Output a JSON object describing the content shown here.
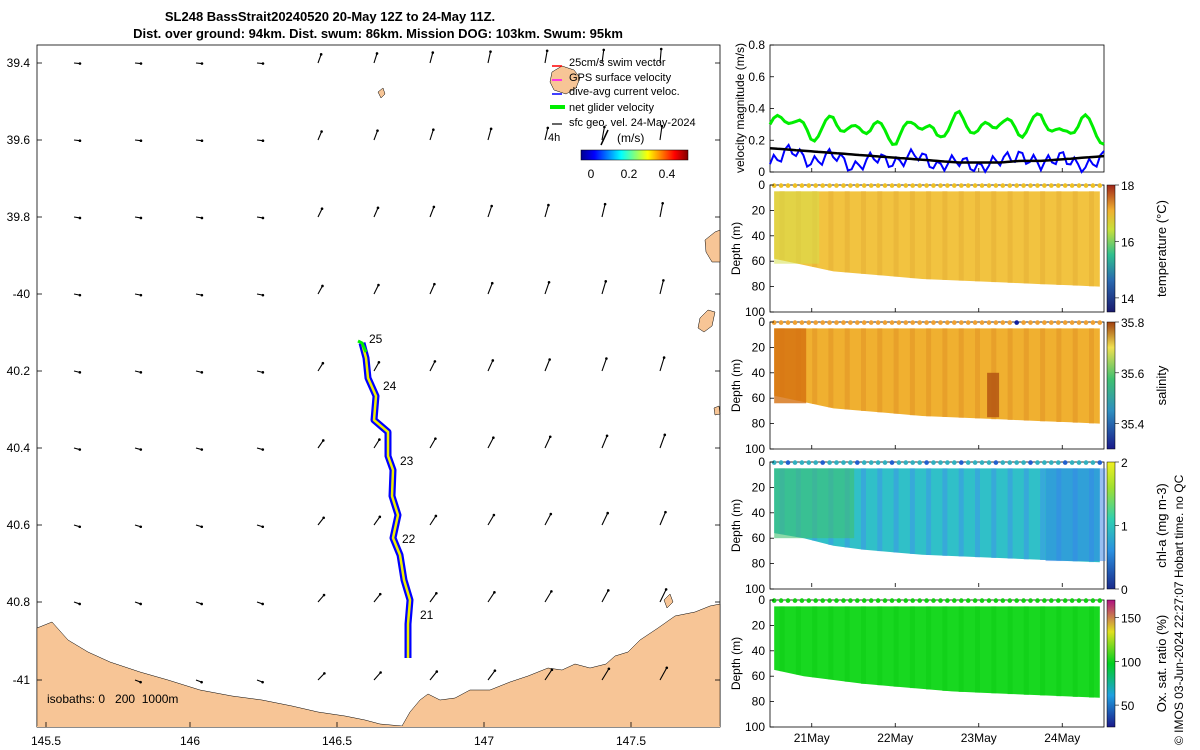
{
  "title": {
    "line1": "SL248 BassStrait20240520 20-May 12Z to 24-May 11Z.",
    "line2": "Dist. over ground: 94km. Dist. swum: 86km. Mission DOG: 103km. Swum: 95km"
  },
  "credit": "© IMOS 03-Jun-2024 22:27:07 Hobart time. no QC",
  "map": {
    "lon_ticks": [
      "145.5",
      "146",
      "146.5",
      "147",
      "147.5"
    ],
    "lon_values": [
      145.5,
      146.0,
      146.5,
      147.0,
      147.5
    ],
    "lat_ticks": [
      "39.4",
      "39.6",
      "39.8",
      "-40",
      "40.2",
      "40.4",
      "40.6",
      "40.8",
      "-41"
    ],
    "lat_values": [
      -39.4,
      -39.6,
      -39.8,
      -40.0,
      -40.2,
      -40.4,
      -40.6,
      -40.8,
      -41.0
    ],
    "legend": {
      "items": [
        {
          "label": "25cm/s swim vector",
          "color": "#ff0000"
        },
        {
          "label": "GPS surface velocity",
          "color": "#ff00ff"
        },
        {
          "label": "dive-avg current veloc.",
          "color": "#0000ff"
        },
        {
          "label": "net glider velocity",
          "color": "#00ee00"
        },
        {
          "label": "sfc geo. vel. 24-May-2024",
          "color": "#000000"
        }
      ],
      "cbar_unit": "(m/s)",
      "cbar_ticks": [
        "0",
        "0.2",
        "0.4"
      ],
      "arrow_label": "4h"
    },
    "day_labels": [
      "25",
      "24",
      "23",
      "22",
      "21"
    ],
    "isobaths_label": "isobaths: 0   200  1000m",
    "land_color": "#f7c596"
  },
  "panels": {
    "velocity": {
      "ylabel": "velocity magnitude (m/s)",
      "yticks": [
        "0",
        "0.2",
        "0.4",
        "0.6",
        "0.8"
      ],
      "ylim": [
        0,
        0.8
      ]
    },
    "temperature": {
      "ylabel": "temperature (°C)",
      "cbar_ticks": [
        "14",
        "16",
        "18"
      ],
      "depth_label": "Depth (m)",
      "depth_ticks": [
        "0",
        "20",
        "40",
        "60",
        "80",
        "100"
      ]
    },
    "salinity": {
      "ylabel": "salinity",
      "cbar_ticks": [
        "35.4",
        "35.6",
        "35.8"
      ],
      "depth_label": "Depth (m)",
      "depth_ticks": [
        "0",
        "20",
        "40",
        "60",
        "80",
        "100"
      ]
    },
    "chla": {
      "ylabel": "chl-a (mg m-3)",
      "cbar_ticks": [
        "0",
        "1",
        "2"
      ],
      "depth_label": "Depth (m)",
      "depth_ticks": [
        "0",
        "20",
        "40",
        "60",
        "80",
        "100"
      ]
    },
    "oxygen": {
      "ylabel": "Ox. sat. ratio (%)",
      "cbar_ticks": [
        "50",
        "100",
        "150"
      ],
      "depth_label": "Depth (m)",
      "depth_ticks": [
        "0",
        "20",
        "40",
        "60",
        "80",
        "100"
      ]
    },
    "time_ticks": [
      "21May",
      "22May",
      "23May",
      "24May"
    ]
  },
  "chart_data": [
    {
      "type": "line",
      "title": "velocity magnitude",
      "x": [
        20.5,
        20.75,
        21.0,
        21.25,
        21.5,
        21.75,
        22.0,
        22.25,
        22.5,
        22.75,
        23.0,
        23.25,
        23.5,
        23.75,
        24.0,
        24.25,
        24.5
      ],
      "series": [
        {
          "name": "net glider velocity",
          "color": "#00ee00",
          "values": [
            0.3,
            0.35,
            0.22,
            0.33,
            0.25,
            0.3,
            0.2,
            0.33,
            0.22,
            0.35,
            0.25,
            0.33,
            0.25,
            0.35,
            0.22,
            0.34,
            0.2
          ]
        },
        {
          "name": "dive-avg current veloc.",
          "color": "#0000ff",
          "values": [
            0.05,
            0.15,
            0.05,
            0.12,
            0.02,
            0.1,
            0.05,
            0.12,
            0.03,
            0.08,
            0.02,
            0.08,
            0.1,
            0.05,
            0.1,
            0.02,
            0.1
          ]
        },
        {
          "name": "sfc geo. vel.",
          "color": "#000000",
          "values": [
            0.15,
            0.14,
            0.13,
            0.12,
            0.11,
            0.1,
            0.09,
            0.08,
            0.07,
            0.06,
            0.06,
            0.06,
            0.07,
            0.07,
            0.08,
            0.09,
            0.1
          ]
        }
      ],
      "xlabel": "",
      "ylabel": "velocity magnitude (m/s)",
      "ylim": [
        0,
        0.8
      ],
      "xlim": [
        20.5,
        24.5
      ]
    },
    {
      "type": "heatmap",
      "title": "temperature section",
      "ylabel": "Depth (m)",
      "clim": [
        13.5,
        18
      ],
      "bottom_depth_m": [
        58,
        63,
        68,
        70,
        72,
        74,
        75,
        76,
        77,
        78,
        79,
        80
      ],
      "surface_value": 17.1
    },
    {
      "type": "heatmap",
      "title": "salinity section",
      "ylabel": "Depth (m)",
      "clim": [
        35.3,
        35.8
      ],
      "bottom_depth_m": [
        58,
        63,
        68,
        70,
        72,
        74,
        75,
        76,
        77,
        78,
        79,
        80
      ],
      "surface_value": 35.68
    },
    {
      "type": "heatmap",
      "title": "chl-a section",
      "ylabel": "Depth (m)",
      "clim": [
        0,
        2
      ],
      "bottom_depth_m": [
        56,
        60,
        66,
        69,
        71,
        73,
        74,
        75,
        76,
        77,
        78,
        79
      ],
      "surface_value": 0.75
    },
    {
      "type": "heatmap",
      "title": "oxygen saturation section",
      "ylabel": "Depth (m)",
      "clim": [
        25,
        170
      ],
      "bottom_depth_m": [
        55,
        60,
        63,
        66,
        68,
        70,
        72,
        73,
        74,
        75,
        76,
        77
      ],
      "surface_value": 105
    }
  ]
}
